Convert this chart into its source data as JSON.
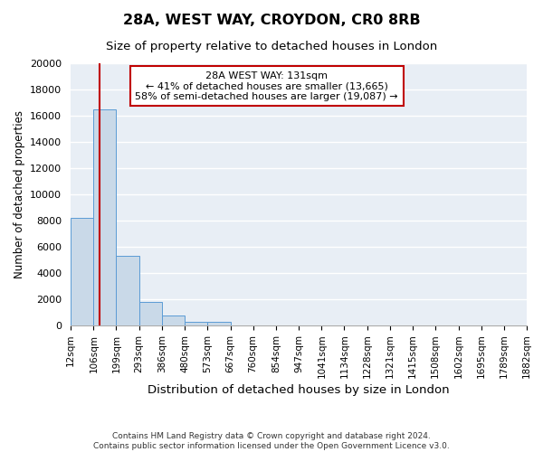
{
  "title": "28A, WEST WAY, CROYDON, CR0 8RB",
  "subtitle": "Size of property relative to detached houses in London",
  "xlabel": "Distribution of detached houses by size in London",
  "ylabel": "Number of detached properties",
  "bin_labels": [
    "12sqm",
    "106sqm",
    "199sqm",
    "293sqm",
    "386sqm",
    "480sqm",
    "573sqm",
    "667sqm",
    "760sqm",
    "854sqm",
    "947sqm",
    "1041sqm",
    "1134sqm",
    "1228sqm",
    "1321sqm",
    "1415sqm",
    "1508sqm",
    "1602sqm",
    "1695sqm",
    "1789sqm",
    "1882sqm"
  ],
  "bar_values": [
    8200,
    16500,
    5300,
    1800,
    750,
    300,
    250,
    0,
    0,
    0,
    0,
    0,
    0,
    0,
    0,
    0,
    0,
    0,
    0,
    0
  ],
  "bar_color": "#c9d9e8",
  "bar_edge_color": "#5b9bd5",
  "background_color": "#e8eef5",
  "red_line_x": 131,
  "bin_edges_numeric": [
    12,
    106,
    199,
    293,
    386,
    480,
    573,
    667,
    760,
    854,
    947,
    1041,
    1134,
    1228,
    1321,
    1415,
    1508,
    1602,
    1695,
    1789,
    1882
  ],
  "annotation_title": "28A WEST WAY: 131sqm",
  "annotation_line1": "← 41% of detached houses are smaller (13,665)",
  "annotation_line2": "58% of semi-detached houses are larger (19,087) →",
  "annotation_box_color": "#ffffff",
  "annotation_border_color": "#c00000",
  "ylim": [
    0,
    20000
  ],
  "yticks": [
    0,
    2000,
    4000,
    6000,
    8000,
    10000,
    12000,
    14000,
    16000,
    18000,
    20000
  ],
  "footer_line1": "Contains HM Land Registry data © Crown copyright and database right 2024.",
  "footer_line2": "Contains public sector information licensed under the Open Government Licence v3.0."
}
